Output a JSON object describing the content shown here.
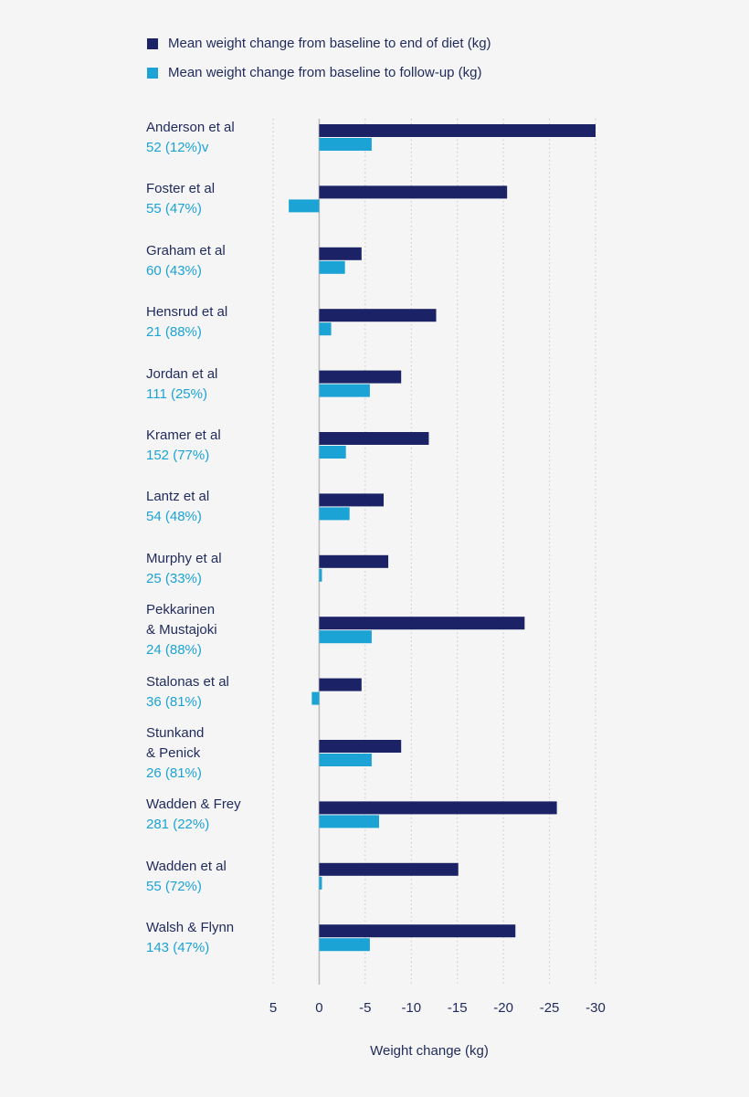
{
  "chart_data": {
    "type": "hbar",
    "x_label": "Weight change (kg)",
    "categories": [
      "Anderson et al",
      "Foster et al",
      "Graham et al",
      "Hensrud et al",
      "Jordan et al",
      "Kramer et al",
      "Lantz et al",
      "Murphy et al",
      "Pekkarinen\n& Mustajoki",
      "Stalonas et al",
      "Stunkand\n& Penick",
      "Wadden & Frey",
      "Wadden et al",
      "Walsh & Flynn"
    ],
    "sample_labels": [
      "52 (12%)v",
      "55 (47%)",
      "60 (43%)",
      "21 (88%)",
      "111 (25%)",
      "152 (77%)",
      "54 (48%)",
      "25 (33%)",
      "24 (88%)",
      "36 (81%)",
      "26 (81%)",
      "281 (22%)",
      "55 (72%)",
      "143 (47%)"
    ],
    "series": [
      {
        "name": "Mean weight change from baseline to end of diet (kg)",
        "color": "#1b2366",
        "values": [
          -30,
          -20.4,
          -4.6,
          -12.7,
          -8.9,
          -11.9,
          -7.0,
          -7.5,
          -22.3,
          -4.6,
          -8.9,
          -25.8,
          -15.1,
          -21.3
        ]
      },
      {
        "name": "Mean weight change from baseline to follow-up (kg)",
        "color": "#1ba3d6",
        "values": [
          -5.7,
          3.3,
          -2.8,
          -1.3,
          -5.5,
          -2.9,
          -3.3,
          -0.3,
          -5.7,
          0.8,
          -5.7,
          -6.5,
          -0.3,
          -5.5
        ]
      }
    ],
    "xlim": [
      5,
      -30
    ],
    "xticks": [
      5,
      0,
      -5,
      -10,
      -15,
      -20,
      -25,
      -30
    ],
    "grid": true,
    "legend": "top"
  }
}
